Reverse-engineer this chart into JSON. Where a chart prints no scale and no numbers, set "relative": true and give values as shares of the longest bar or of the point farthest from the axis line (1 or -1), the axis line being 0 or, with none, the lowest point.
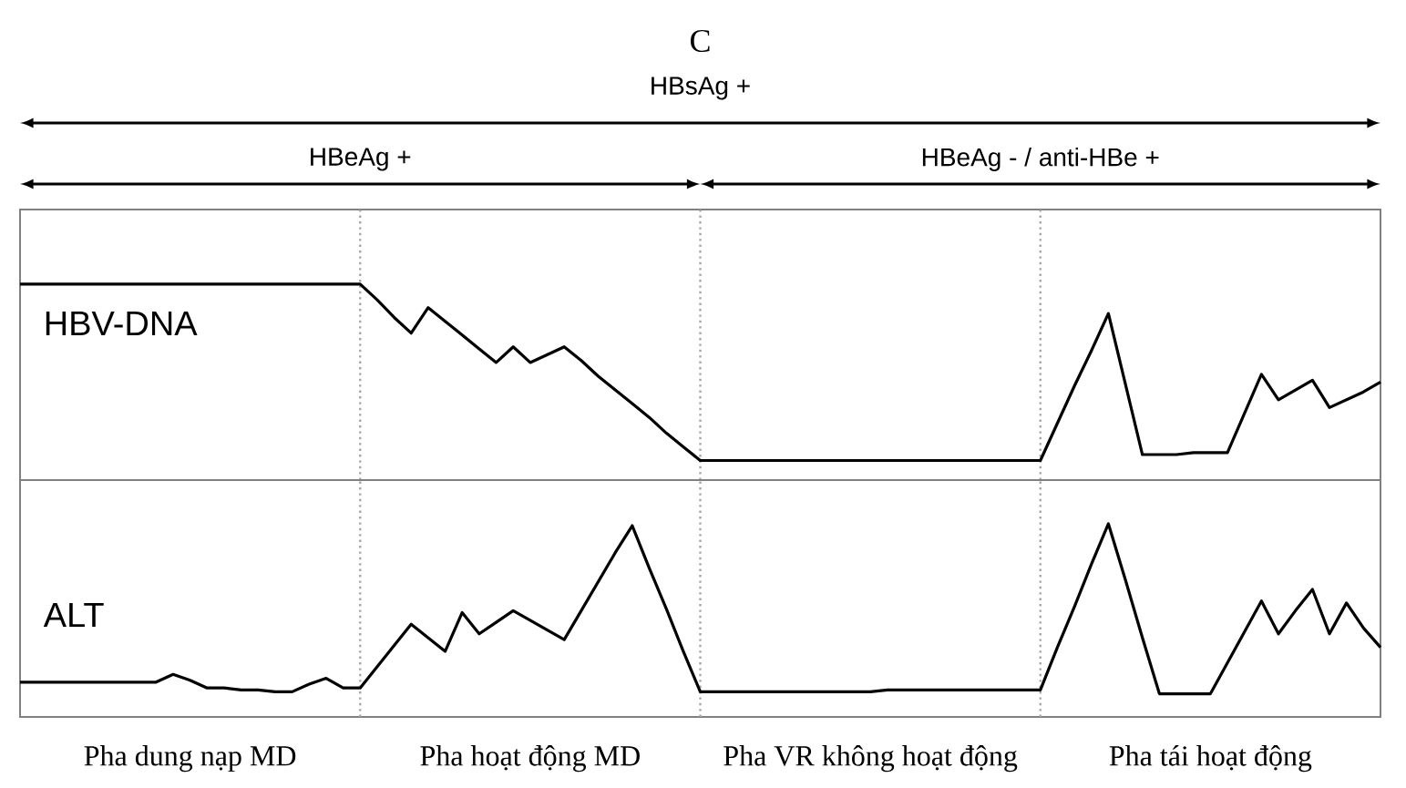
{
  "chart_data": [
    {
      "type": "line",
      "title": "C",
      "ylabel": "HBV-DNA",
      "relative": true,
      "tick_labels": false,
      "grid": "x",
      "annotations": [
        "HBsAg +",
        "HBeAg +",
        "HBeAg - / anti-HBe +"
      ],
      "categories": [
        null,
        null,
        null,
        null,
        null,
        null,
        null,
        null,
        null,
        null,
        null,
        null,
        null,
        null,
        null,
        null,
        null,
        null,
        null,
        null,
        null,
        null,
        null,
        null,
        null,
        null,
        null,
        null,
        null,
        null,
        null,
        null,
        null,
        null,
        null,
        null,
        null,
        null,
        null,
        null,
        null,
        null,
        null,
        null,
        null,
        null,
        null,
        null,
        null,
        null,
        null,
        null,
        null,
        null,
        null,
        null,
        null,
        null,
        null,
        null,
        null,
        null,
        null,
        null,
        null,
        null,
        null,
        null,
        null,
        null,
        null,
        null,
        null,
        null,
        null,
        null,
        null,
        null,
        null,
        null,
        null
      ],
      "series": [
        {
          "color": "#000000",
          "values": [
            1.0,
            1.0,
            1.0,
            1.0,
            1.0,
            1.0,
            1.0,
            1.0,
            1.0,
            1.0,
            1.0,
            1.0,
            1.0,
            1.0,
            1.0,
            1.0,
            1.0,
            1.0,
            1.0,
            1.0,
            1.0,
            0.92,
            0.83,
            0.75,
            0.88,
            0.81,
            0.74,
            0.67,
            0.6,
            0.68,
            0.6,
            0.64,
            0.68,
            0.61,
            0.53,
            0.46,
            0.39,
            0.32,
            0.24,
            0.17,
            0.1,
            0.1,
            0.1,
            0.1,
            0.1,
            0.1,
            0.1,
            0.1,
            0.1,
            0.1,
            0.1,
            0.1,
            0.1,
            0.1,
            0.1,
            0.1,
            0.1,
            0.1,
            0.1,
            0.1,
            0.1,
            0.29,
            0.48,
            0.66,
            0.85,
            0.49,
            0.13,
            0.13,
            0.13,
            0.14,
            0.14,
            0.14,
            0.34,
            0.54,
            0.41,
            0.46,
            0.51,
            0.37,
            0.41,
            0.45,
            0.5
          ]
        }
      ]
    },
    {
      "type": "line",
      "ylabel": "ALT",
      "relative": true,
      "tick_labels": "x",
      "grid": "x",
      "categories": [
        null,
        null,
        null,
        null,
        null,
        null,
        null,
        null,
        null,
        null,
        "Pha dung nạp MD",
        null,
        null,
        null,
        null,
        null,
        null,
        null,
        null,
        null,
        null,
        null,
        null,
        null,
        null,
        null,
        null,
        null,
        null,
        null,
        "Pha hoạt động MD",
        null,
        null,
        null,
        null,
        null,
        null,
        null,
        null,
        null,
        null,
        null,
        null,
        null,
        null,
        null,
        null,
        null,
        null,
        null,
        "Pha VR không hoạt động",
        null,
        null,
        null,
        null,
        null,
        null,
        null,
        null,
        null,
        null,
        null,
        null,
        null,
        null,
        null,
        null,
        null,
        null,
        null,
        "Pha tái hoạt động",
        null,
        null,
        null,
        null,
        null,
        null,
        null,
        null,
        null,
        null
      ],
      "series": [
        {
          "color": "#000000",
          "values": [
            0.18,
            0.18,
            0.18,
            0.18,
            0.18,
            0.18,
            0.18,
            0.18,
            0.18,
            0.22,
            0.19,
            0.15,
            0.15,
            0.14,
            0.14,
            0.13,
            0.13,
            0.17,
            0.2,
            0.15,
            0.15,
            0.26,
            0.37,
            0.48,
            0.41,
            0.34,
            0.54,
            0.43,
            0.49,
            0.55,
            0.5,
            0.45,
            0.4,
            0.55,
            0.7,
            0.85,
            0.99,
            0.77,
            0.56,
            0.34,
            0.13,
            0.13,
            0.13,
            0.13,
            0.13,
            0.13,
            0.13,
            0.13,
            0.13,
            0.13,
            0.13,
            0.14,
            0.14,
            0.14,
            0.14,
            0.14,
            0.14,
            0.14,
            0.14,
            0.14,
            0.14,
            0.36,
            0.57,
            0.79,
            1.0,
            0.71,
            0.41,
            0.12,
            0.12,
            0.12,
            0.12,
            0.28,
            0.44,
            0.6,
            0.43,
            0.55,
            0.66,
            0.43,
            0.59,
            0.46,
            0.36
          ]
        }
      ]
    }
  ]
}
